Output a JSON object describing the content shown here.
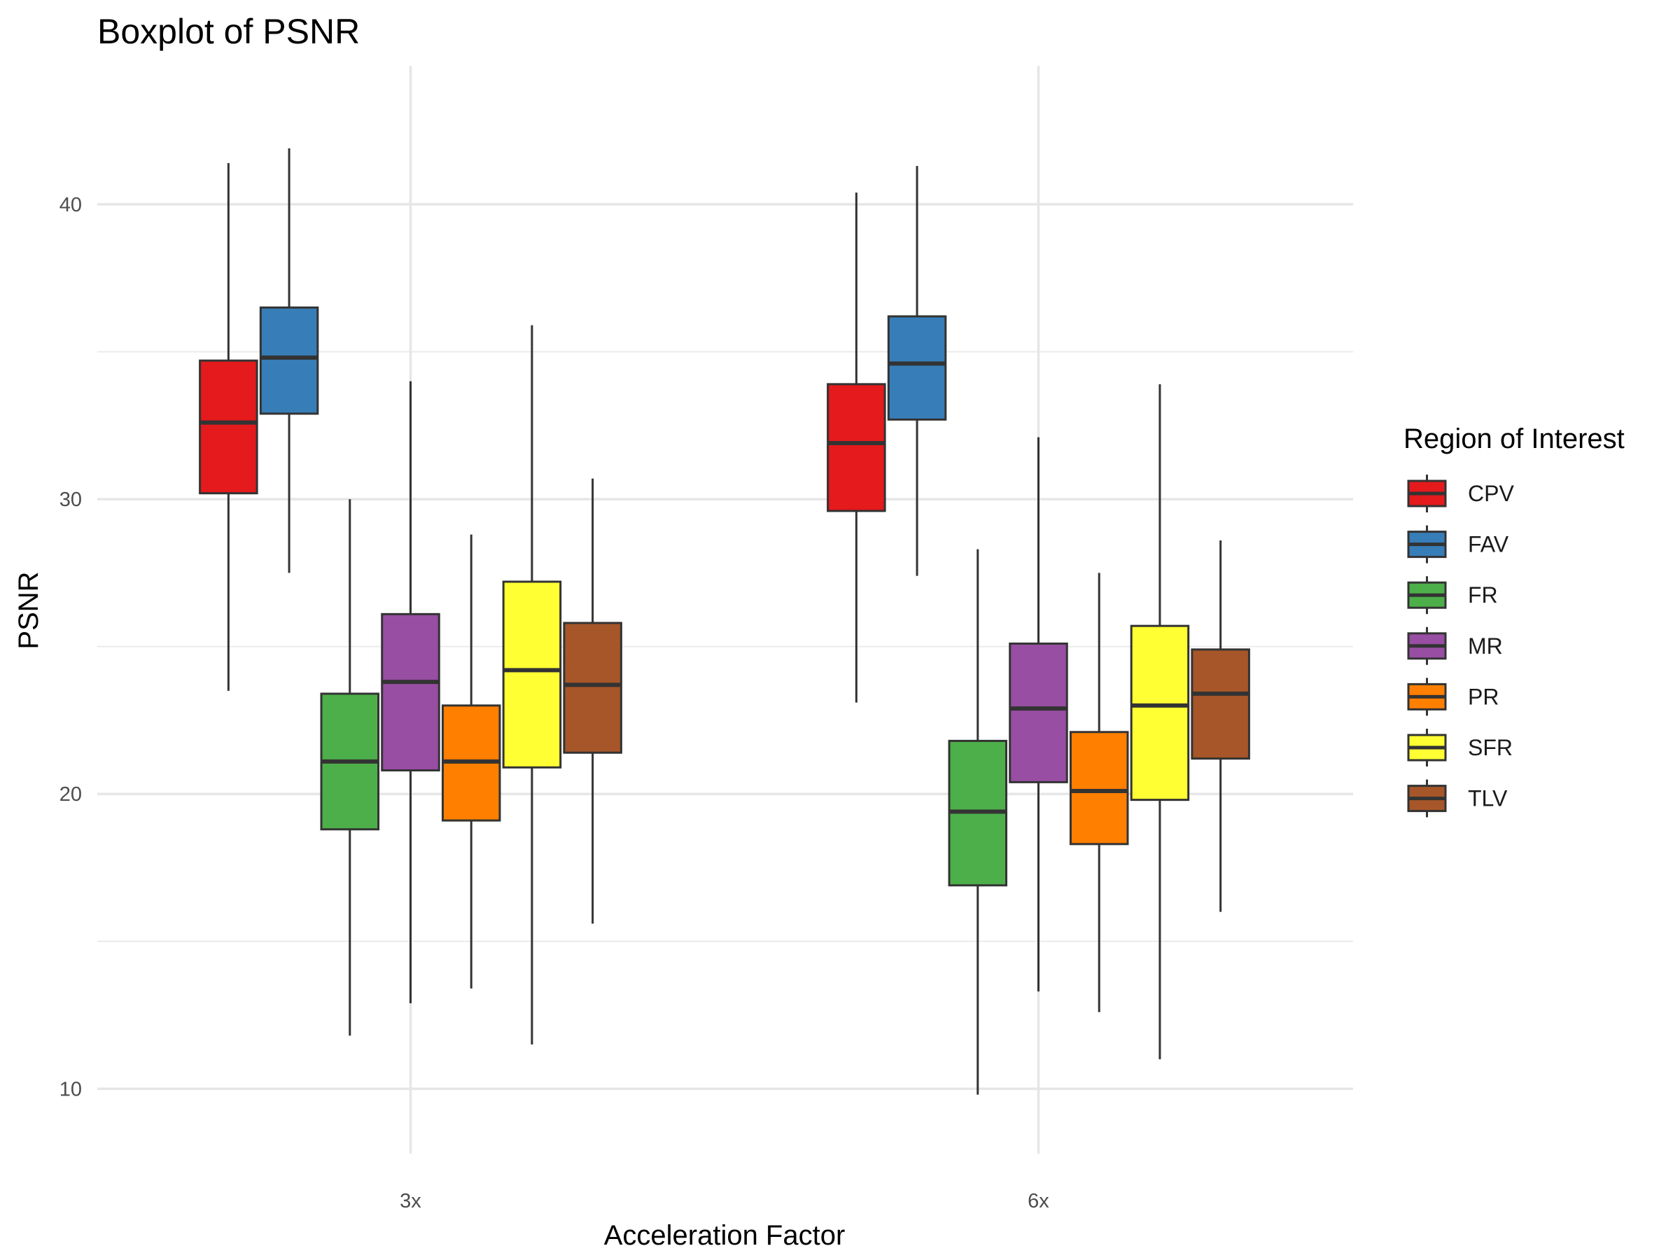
{
  "chart_data": {
    "type": "boxplot",
    "title": "Boxplot of PSNR",
    "xlabel": "Acceleration Factor",
    "ylabel": "PSNR",
    "ylim": [
      7.8,
      44.7
    ],
    "yticks": [
      10,
      20,
      30,
      40
    ],
    "categories": [
      "3x",
      "6x"
    ],
    "grid": true,
    "legend": {
      "title": "Region of Interest",
      "position": "right"
    },
    "series": [
      {
        "name": "CPV",
        "color": "#e41a1c",
        "stats": [
          {
            "min": 23.5,
            "q1": 30.2,
            "median": 32.6,
            "q3": 34.7,
            "max": 41.4
          },
          {
            "min": 23.1,
            "q1": 29.6,
            "median": 31.9,
            "q3": 33.9,
            "max": 40.4
          }
        ]
      },
      {
        "name": "FAV",
        "color": "#377eb8",
        "stats": [
          {
            "min": 27.5,
            "q1": 32.9,
            "median": 34.8,
            "q3": 36.5,
            "max": 41.9
          },
          {
            "min": 27.4,
            "q1": 32.7,
            "median": 34.6,
            "q3": 36.2,
            "max": 41.3
          }
        ]
      },
      {
        "name": "FR",
        "color": "#4daf4a",
        "stats": [
          {
            "min": 11.8,
            "q1": 18.8,
            "median": 21.1,
            "q3": 23.4,
            "max": 30.0
          },
          {
            "min": 9.8,
            "q1": 16.9,
            "median": 19.4,
            "q3": 21.8,
            "max": 28.3
          }
        ]
      },
      {
        "name": "MR",
        "color": "#984ea3",
        "stats": [
          {
            "min": 12.9,
            "q1": 20.8,
            "median": 23.8,
            "q3": 26.1,
            "max": 34.0
          },
          {
            "min": 13.3,
            "q1": 20.4,
            "median": 22.9,
            "q3": 25.1,
            "max": 32.1
          }
        ]
      },
      {
        "name": "PR",
        "color": "#ff7f00",
        "stats": [
          {
            "min": 13.4,
            "q1": 19.1,
            "median": 21.1,
            "q3": 23.0,
            "max": 28.8
          },
          {
            "min": 12.6,
            "q1": 18.3,
            "median": 20.1,
            "q3": 22.1,
            "max": 27.5
          }
        ]
      },
      {
        "name": "SFR",
        "color": "#ffff33",
        "stats": [
          {
            "min": 11.5,
            "q1": 20.9,
            "median": 24.2,
            "q3": 27.2,
            "max": 35.9
          },
          {
            "min": 11.0,
            "q1": 19.8,
            "median": 23.0,
            "q3": 25.7,
            "max": 33.9
          }
        ]
      },
      {
        "name": "TLV",
        "color": "#a65628",
        "stats": [
          {
            "min": 15.6,
            "q1": 21.4,
            "median": 23.7,
            "q3": 25.8,
            "max": 30.7
          },
          {
            "min": 16.0,
            "q1": 21.2,
            "median": 23.4,
            "q3": 24.9,
            "max": 28.6
          }
        ]
      }
    ]
  }
}
